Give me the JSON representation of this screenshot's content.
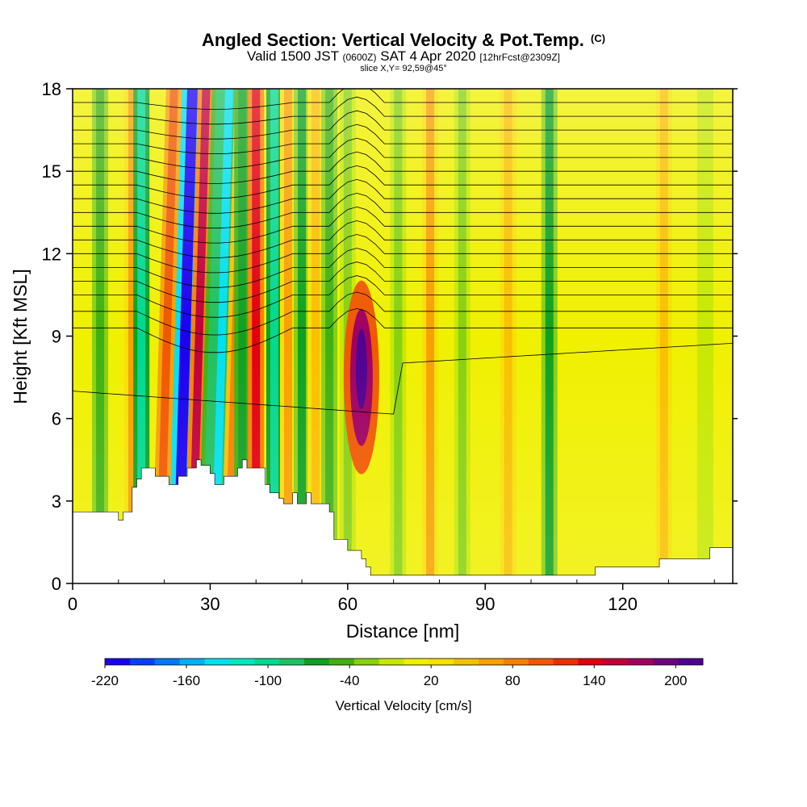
{
  "header": {
    "title": "Angled Section: Vertical Velocity & Pot.Temp.",
    "title_mark": "(C)",
    "valid_prefix": "Valid 1500 JST",
    "valid_utc": "(0600Z)",
    "valid_date": "SAT 4 Apr 2020",
    "forecast": "[12hrFcst@2309Z]",
    "slice": "slice X,Y= 92,59@45°"
  },
  "chart_data": {
    "type": "heatmap",
    "xlabel": "Distance [nm]",
    "ylabel": "Height [Kft MSL]",
    "xlim": [
      0,
      144
    ],
    "ylim": [
      0,
      18
    ],
    "x_ticks": [
      0,
      30,
      60,
      90,
      120
    ],
    "y_ticks": [
      0,
      3,
      6,
      9,
      12,
      15,
      18
    ],
    "colorbar": {
      "label": "Vertical Velocity [cm/s]",
      "range": [
        -220,
        220
      ],
      "tick_values": [
        -220,
        -160,
        -100,
        -40,
        20,
        80,
        140,
        200
      ],
      "colors": [
        "#1a00f0",
        "#0040f8",
        "#0078f8",
        "#00b0f8",
        "#00e0f0",
        "#00e8c0",
        "#00d890",
        "#20c060",
        "#10a020",
        "#40b010",
        "#88d010",
        "#c8e800",
        "#f0f000",
        "#f8e000",
        "#f8c000",
        "#f8a000",
        "#f88000",
        "#f05800",
        "#e83000",
        "#e00010",
        "#c00038",
        "#a00060",
        "#700080",
        "#500090"
      ],
      "tick_label_strings": [
        "-220",
        "-160",
        "-100",
        "-40",
        "20",
        "80",
        "140",
        "200"
      ]
    },
    "velocity_bands": [
      {
        "x": 6,
        "v": -40
      },
      {
        "x": 13,
        "v": 60
      },
      {
        "x": 15,
        "v": -100
      },
      {
        "x": 19,
        "v": 100
      },
      {
        "x": 23,
        "v": -220
      },
      {
        "x": 26,
        "v": 150
      },
      {
        "x": 29,
        "v": -90
      },
      {
        "x": 31,
        "v": -140
      },
      {
        "x": 34,
        "v": 90
      },
      {
        "x": 37,
        "v": -70
      },
      {
        "x": 40,
        "v": 130
      },
      {
        "x": 44,
        "v": -100
      },
      {
        "x": 47,
        "v": 60
      },
      {
        "x": 50,
        "v": -60
      },
      {
        "x": 53,
        "v": 40
      },
      {
        "x": 56,
        "v": -50
      },
      {
        "x": 60,
        "v": -30
      },
      {
        "x": 63,
        "v": 210
      },
      {
        "x": 71,
        "v": -30
      },
      {
        "x": 78,
        "v": 60
      },
      {
        "x": 85,
        "v": -20
      },
      {
        "x": 95,
        "v": 40
      },
      {
        "x": 104,
        "v": -60
      },
      {
        "x": 116,
        "v": 10
      },
      {
        "x": 129,
        "v": 40
      },
      {
        "x": 138,
        "v": -10
      }
    ],
    "terrain": {
      "x": [
        0,
        7,
        7,
        10,
        10,
        11,
        11,
        13,
        13,
        14,
        14,
        15,
        15,
        18,
        18,
        21,
        21,
        23,
        23,
        25,
        25,
        27,
        27,
        28,
        28,
        30,
        30,
        31,
        31,
        33,
        33,
        36,
        36,
        37,
        37,
        38,
        38,
        42,
        42,
        43,
        43,
        45,
        45,
        46,
        46,
        48,
        48,
        49,
        49,
        51,
        51,
        52,
        52,
        56,
        56,
        57,
        57,
        58,
        58,
        60,
        60,
        63,
        63,
        64,
        64,
        65,
        65,
        66,
        66,
        68,
        68,
        114,
        114,
        128,
        128,
        139,
        139,
        144
      ],
      "height": [
        2.6,
        2.6,
        2.6,
        2.6,
        2.3,
        2.3,
        2.6,
        2.6,
        3.5,
        3.5,
        3.8,
        3.8,
        4.2,
        4.2,
        3.9,
        3.9,
        3.6,
        3.6,
        3.9,
        3.9,
        4.2,
        4.2,
        4.5,
        4.5,
        4.3,
        4.3,
        4.0,
        4.0,
        3.6,
        3.6,
        3.9,
        3.9,
        4.2,
        4.2,
        4.5,
        4.5,
        4.2,
        4.2,
        3.6,
        3.6,
        3.3,
        3.3,
        3.1,
        3.1,
        2.9,
        2.9,
        3.3,
        3.3,
        2.9,
        2.9,
        3.3,
        3.3,
        2.9,
        2.9,
        2.6,
        2.6,
        1.6,
        1.6,
        1.6,
        1.6,
        1.2,
        1.2,
        0.9,
        0.9,
        0.6,
        0.6,
        0.3,
        0.3,
        0.3,
        0.3,
        0.3,
        0.3,
        0.6,
        0.6,
        0.9,
        0.9,
        1.3,
        1.3
      ]
    },
    "theta_contour_heights": [
      9.3,
      9.9,
      10.5,
      11.0,
      11.5,
      12.0,
      12.5,
      13.0,
      13.5,
      14.0,
      14.5,
      15.0,
      15.5,
      16.0,
      16.5,
      17.0,
      17.5
    ]
  }
}
